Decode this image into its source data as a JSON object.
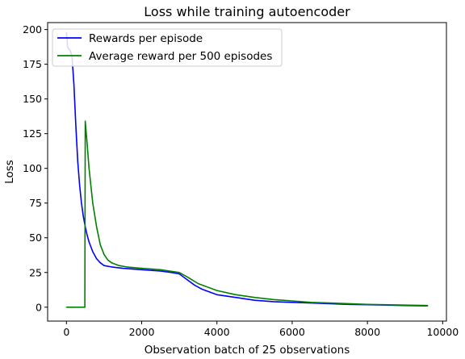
{
  "chart_data": {
    "type": "line",
    "title": "Loss while training autoencoder",
    "xlabel": "Observation batch of 25 observations",
    "ylabel": "Loss",
    "xlim": [
      -500,
      10100
    ],
    "ylim": [
      -10,
      205
    ],
    "xticks": [
      0,
      2000,
      4000,
      6000,
      8000,
      10000
    ],
    "yticks": [
      0,
      25,
      50,
      75,
      100,
      125,
      150,
      175,
      200
    ],
    "grid": false,
    "legend_position": "top-left",
    "series": [
      {
        "name": "Rewards per episode",
        "color": "#0000ff",
        "x": [
          0,
          30,
          60,
          100,
          150,
          200,
          250,
          300,
          350,
          400,
          450,
          500,
          550,
          600,
          700,
          800,
          900,
          1000,
          1200,
          1500,
          2000,
          2500,
          2800,
          3000,
          3200,
          3400,
          3600,
          3800,
          4000,
          4500,
          5000,
          5500,
          6000,
          6500,
          7000,
          7500,
          8000,
          8500,
          9000,
          9500,
          9600
        ],
        "y": [
          198,
          188,
          186,
          185,
          180,
          160,
          130,
          105,
          88,
          75,
          65,
          58,
          52,
          47,
          40,
          35,
          32,
          30,
          29,
          28,
          27,
          26,
          25,
          24,
          20,
          16,
          13,
          11,
          9,
          7,
          5,
          4,
          3.5,
          3,
          2.5,
          2,
          1.8,
          1.5,
          1.2,
          1,
          1
        ]
      },
      {
        "name": "Average reward per 500 episodes",
        "color": "#008000",
        "x": [
          0,
          490,
          500,
          550,
          600,
          700,
          800,
          900,
          1000,
          1100,
          1200,
          1400,
          1600,
          2000,
          2500,
          3000,
          3200,
          3500,
          4000,
          4500,
          5000,
          5500,
          6000,
          6500,
          7000,
          8000,
          9000,
          9600
        ],
        "y": [
          0,
          0,
          134,
          118,
          100,
          75,
          58,
          45,
          38,
          34,
          32,
          30,
          29,
          28,
          27,
          25,
          22,
          17,
          12,
          9,
          7,
          5.5,
          4.5,
          3.5,
          3,
          2,
          1.5,
          1.2
        ]
      }
    ]
  }
}
